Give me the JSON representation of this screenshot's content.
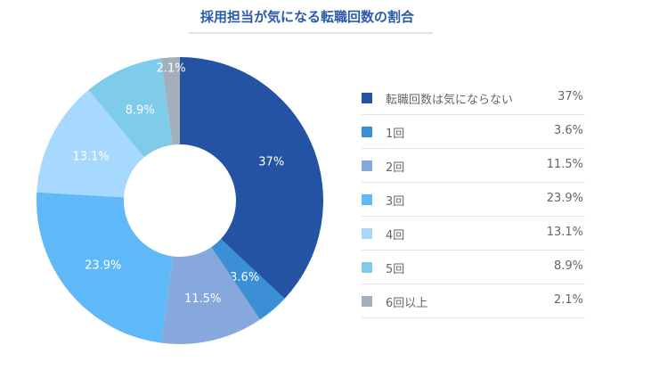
{
  "chart_data": {
    "type": "pie",
    "donut": true,
    "title": "採用担当が気になる転職回数の割合",
    "categories": [
      "転職回数は気にならない",
      "1回",
      "2回",
      "3回",
      "4回",
      "5回",
      "6回以上"
    ],
    "values": [
      37,
      3.6,
      11.5,
      23.9,
      13.1,
      8.9,
      2.1
    ],
    "labels": [
      "37%",
      "3.6%",
      "11.5%",
      "23.9%",
      "13.1%",
      "8.9%",
      "2.1%"
    ],
    "colors": [
      "#2353a2",
      "#3a8fd6",
      "#86a8dd",
      "#5fb8f7",
      "#a7d8fd",
      "#7ecbea",
      "#a4afbc"
    ],
    "legend_placement": "right"
  }
}
